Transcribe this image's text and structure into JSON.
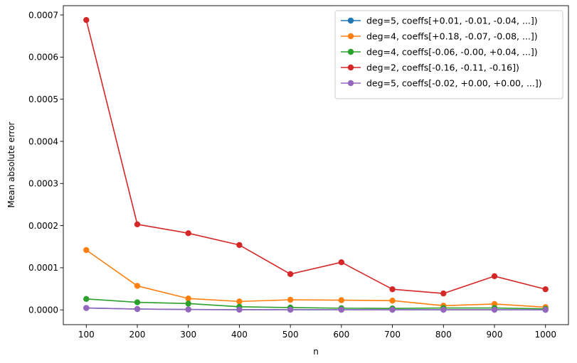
{
  "chart_data": {
    "type": "line",
    "title": "",
    "xlabel": "n",
    "ylabel": "Mean absolute error",
    "x": [
      100,
      200,
      300,
      400,
      500,
      600,
      700,
      800,
      900,
      1000
    ],
    "x_ticks": [
      "100",
      "200",
      "300",
      "400",
      "500",
      "600",
      "700",
      "800",
      "900",
      "1000"
    ],
    "y_ticks": [
      "0.0000",
      "0.0001",
      "0.0002",
      "0.0003",
      "0.0004",
      "0.0005",
      "0.0006",
      "0.0007"
    ],
    "y_tick_values": [
      0,
      0.0001,
      0.0002,
      0.0003,
      0.0004,
      0.0005,
      0.0006,
      0.0007
    ],
    "xlim": [
      55,
      1045
    ],
    "ylim": [
      -3.5e-05,
      0.000722
    ],
    "grid": false,
    "legend_position": "top-right",
    "series": [
      {
        "name": "deg=5, coeffs[+0.01, -0.01, -0.04, ...])",
        "color": "#1f77b4",
        "values": [
          4.5e-06,
          2e-06,
          1e-06,
          5e-07,
          5e-07,
          4e-07,
          4e-07,
          3e-07,
          3e-07,
          2e-07
        ]
      },
      {
        "name": "deg=4, coeffs[+0.18, -0.07, -0.08, ...])",
        "color": "#ff7f0e",
        "values": [
          0.000142,
          5.7e-05,
          2.7e-05,
          2e-05,
          2.4e-05,
          2.3e-05,
          2.2e-05,
          1e-05,
          1.4e-05,
          6.5e-06
        ]
      },
      {
        "name": "deg=4, coeffs[-0.06, -0.00, +0.04, ...])",
        "color": "#2ca02c",
        "values": [
          2.6e-05,
          1.8e-05,
          1.5e-05,
          7.5e-06,
          5.5e-06,
          4e-06,
          3.5e-06,
          4.5e-06,
          4.5e-06,
          2.5e-06
        ]
      },
      {
        "name": "deg=2, coeffs[-0.16, -0.11, -0.16])",
        "color": "#d62728",
        "values": [
          0.000688,
          0.000203,
          0.000182,
          0.000154,
          8.5e-05,
          0.000113,
          4.9e-05,
          3.9e-05,
          8e-05,
          4.9e-05
        ]
      },
      {
        "name": "deg=5, coeffs[-0.02, +0.00, +0.00, ...])",
        "color": "#9467bd",
        "values": [
          4.5e-06,
          2e-06,
          1e-06,
          5e-07,
          4e-07,
          4e-07,
          3e-07,
          3e-07,
          3e-07,
          2e-07
        ]
      }
    ]
  }
}
